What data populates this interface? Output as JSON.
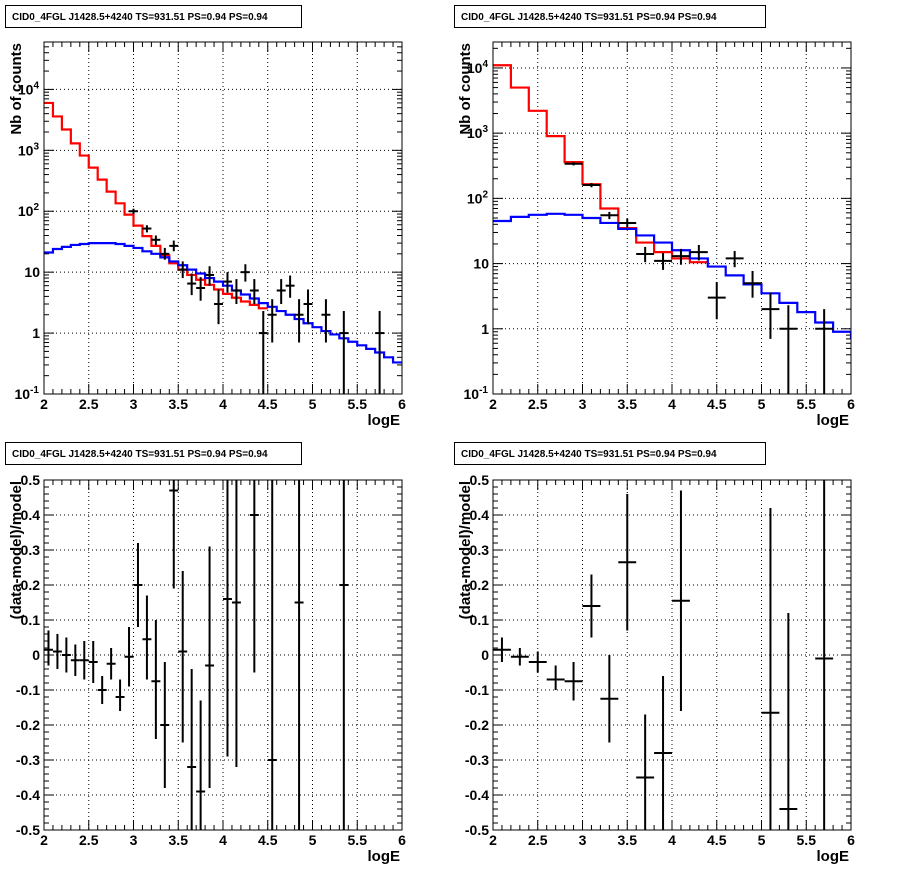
{
  "chart_data": [
    {
      "type": "step",
      "panel": "top-left",
      "title": "CID0_4FGL J1428.5+4240 TS=931.51 PS=0.94 PS=0.94",
      "xlabel": "logE",
      "ylabel": "Nb of counts",
      "xlim": [
        2,
        6
      ],
      "ylim": [
        0.1,
        60000
      ],
      "yscale": "log",
      "grid": true,
      "x_ticks": [
        "2",
        "2.5",
        "3",
        "3.5",
        "4",
        "4.5",
        "5",
        "5.5",
        "6"
      ],
      "y_ticks": [
        "10^-1",
        "1",
        "10",
        "10^2",
        "10^3",
        "10^4"
      ],
      "bin_edges": [
        2.0,
        2.1,
        2.2,
        2.3,
        2.4,
        2.5,
        2.6,
        2.7,
        2.8,
        2.9,
        3.0,
        3.1,
        3.2,
        3.3,
        3.4,
        3.5,
        3.6,
        3.7,
        3.8,
        3.9,
        4.0,
        4.1,
        4.2,
        4.3,
        4.4,
        4.5,
        4.6,
        4.7,
        4.8,
        4.9,
        5.0,
        5.1,
        5.2,
        5.3,
        5.4,
        5.5,
        5.6,
        5.7,
        5.8,
        5.9,
        6.0
      ],
      "series": [
        {
          "color": "#ff0000",
          "style": "step",
          "values": [
            6000,
            3600,
            2200,
            1300,
            820,
            520,
            330,
            210,
            135,
            88,
            58,
            39,
            27,
            19,
            14,
            11,
            9,
            7.5,
            6.2,
            5.2,
            4.4,
            3.8,
            3.3,
            2.9,
            2.55
          ]
        },
        {
          "color": "#0000ff",
          "style": "step",
          "values": [
            21,
            24,
            26,
            28,
            29,
            30,
            30,
            30,
            29,
            27,
            25,
            22,
            20,
            17.5,
            15,
            13,
            11,
            9.5,
            8,
            7,
            6,
            5,
            4.3,
            3.7,
            3.1,
            2.7,
            2.3,
            2,
            1.7,
            1.45,
            1.25,
            1.08,
            0.95,
            0.82,
            0.72,
            0.63,
            0.55,
            0.48,
            0.4,
            0.33
          ]
        },
        {
          "color": "#000000",
          "style": "errorbar",
          "points": [
            {
              "x": 3.0,
              "y": 100,
              "ylo": 90,
              "yhi": 110
            },
            {
              "x": 3.15,
              "y": 52,
              "ylo": 45,
              "yhi": 59
            },
            {
              "x": 3.25,
              "y": 34,
              "ylo": 28,
              "yhi": 40
            },
            {
              "x": 3.35,
              "y": 20,
              "ylo": 16,
              "yhi": 25
            },
            {
              "x": 3.45,
              "y": 27,
              "ylo": 22,
              "yhi": 33
            },
            {
              "x": 3.55,
              "y": 11,
              "ylo": 8,
              "yhi": 15
            },
            {
              "x": 3.65,
              "y": 6.5,
              "ylo": 4.2,
              "yhi": 9.5
            },
            {
              "x": 3.75,
              "y": 5.5,
              "ylo": 3.4,
              "yhi": 8.3
            },
            {
              "x": 3.85,
              "y": 9,
              "ylo": 6,
              "yhi": 12.5
            },
            {
              "x": 3.95,
              "y": 3,
              "ylo": 1.4,
              "yhi": 5.2
            },
            {
              "x": 4.05,
              "y": 7,
              "ylo": 4.6,
              "yhi": 10
            },
            {
              "x": 4.15,
              "y": 5,
              "ylo": 3,
              "yhi": 7.7
            },
            {
              "x": 4.25,
              "y": 10,
              "ylo": 7,
              "yhi": 13.5
            },
            {
              "x": 4.35,
              "y": 5,
              "ylo": 3,
              "yhi": 7.7
            },
            {
              "x": 4.45,
              "y": 1,
              "ylo": 0.1,
              "yhi": 2.3
            },
            {
              "x": 4.55,
              "y": 2,
              "ylo": 0.7,
              "yhi": 3.6
            },
            {
              "x": 4.65,
              "y": 5,
              "ylo": 3,
              "yhi": 7.7
            },
            {
              "x": 4.75,
              "y": 6,
              "ylo": 3.8,
              "yhi": 8.8
            },
            {
              "x": 4.85,
              "y": 2,
              "ylo": 0.7,
              "yhi": 3.6
            },
            {
              "x": 4.95,
              "y": 3,
              "ylo": 1.4,
              "yhi": 5.2
            },
            {
              "x": 5.15,
              "y": 2,
              "ylo": 0.7,
              "yhi": 3.6
            },
            {
              "x": 5.35,
              "y": 1,
              "ylo": 0.1,
              "yhi": 2.3
            },
            {
              "x": 5.75,
              "y": 1,
              "ylo": 0.1,
              "yhi": 2.3
            }
          ]
        }
      ]
    },
    {
      "type": "step",
      "panel": "top-right",
      "title": "CID0_4FGL J1428.5+4240 TS=931.51 PS=0.94 PS=0.94",
      "xlabel": "logE",
      "ylabel": "Nb of counts",
      "xlim": [
        2,
        6
      ],
      "ylim": [
        0.1,
        25000
      ],
      "yscale": "log",
      "grid": true,
      "x_ticks": [
        "2",
        "2.5",
        "3",
        "3.5",
        "4",
        "4.5",
        "5",
        "5.5",
        "6"
      ],
      "y_ticks": [
        "10^-1",
        "1",
        "10",
        "10^2",
        "10^3",
        "10^4"
      ],
      "bin_edges": [
        2.0,
        2.2,
        2.4,
        2.6,
        2.8,
        3.0,
        3.2,
        3.4,
        3.6,
        3.8,
        4.0,
        4.2,
        4.4,
        4.6,
        4.8,
        5.0,
        5.2,
        5.4,
        5.6,
        5.8,
        6.0
      ],
      "series": [
        {
          "color": "#ff0000",
          "style": "step",
          "values": [
            11000,
            5000,
            2200,
            900,
            360,
            165,
            70,
            35,
            21,
            15,
            12,
            10.5
          ]
        },
        {
          "color": "#0000ff",
          "style": "step",
          "values": [
            45,
            52,
            56,
            58,
            56,
            50,
            42,
            34,
            27,
            21,
            16,
            12,
            9,
            6.6,
            4.8,
            3.5,
            2.5,
            1.8,
            1.25,
            0.9,
            0.7
          ]
        },
        {
          "color": "#000000",
          "style": "errorbar",
          "points": [
            {
              "x": 2.9,
              "y": 340,
              "ylo": 320,
              "yhi": 360
            },
            {
              "x": 3.1,
              "y": 160,
              "ylo": 148,
              "yhi": 172
            },
            {
              "x": 3.3,
              "y": 55,
              "ylo": 48,
              "yhi": 62
            },
            {
              "x": 3.5,
              "y": 42,
              "ylo": 36,
              "yhi": 49
            },
            {
              "x": 3.7,
              "y": 14,
              "ylo": 10.5,
              "yhi": 18
            },
            {
              "x": 3.9,
              "y": 11,
              "ylo": 8,
              "yhi": 14.5
            },
            {
              "x": 4.1,
              "y": 13,
              "ylo": 9.6,
              "yhi": 16.8
            },
            {
              "x": 4.3,
              "y": 15,
              "ylo": 11.2,
              "yhi": 19.3
            },
            {
              "x": 4.5,
              "y": 3,
              "ylo": 1.4,
              "yhi": 5.2
            },
            {
              "x": 4.7,
              "y": 12,
              "ylo": 8.8,
              "yhi": 15.6
            },
            {
              "x": 4.9,
              "y": 5,
              "ylo": 3,
              "yhi": 7.7
            },
            {
              "x": 5.1,
              "y": 2,
              "ylo": 0.7,
              "yhi": 3.6
            },
            {
              "x": 5.3,
              "y": 1,
              "ylo": 0.1,
              "yhi": 2.3
            },
            {
              "x": 5.7,
              "y": 1,
              "ylo": 0.1,
              "yhi": 2.0
            }
          ]
        }
      ]
    },
    {
      "type": "scatter",
      "panel": "bottom-left",
      "title": "CID0_4FGL J1428.5+4240 TS=931.51 PS=0.94 PS=0.94",
      "xlabel": "logE",
      "ylabel": "(data-model)/model",
      "xlim": [
        2,
        6
      ],
      "ylim": [
        -0.5,
        0.5
      ],
      "yscale": "linear",
      "grid": true,
      "x_ticks": [
        "2",
        "2.5",
        "3",
        "3.5",
        "4",
        "4.5",
        "5",
        "5.5",
        "6"
      ],
      "y_ticks": [
        "-0.5",
        "-0.4",
        "-0.3",
        "-0.2",
        "-0.1",
        "0",
        "0.1",
        "0.2",
        "0.3",
        "0.4",
        "0.5"
      ],
      "series": [
        {
          "color": "#000000",
          "style": "errorbar",
          "xerr": 0.05,
          "points": [
            {
              "x": 2.05,
              "y": 0.015,
              "ylo": -0.03,
              "yhi": 0.07
            },
            {
              "x": 2.15,
              "y": 0.01,
              "ylo": -0.04,
              "yhi": 0.06
            },
            {
              "x": 2.25,
              "y": 0.0,
              "ylo": -0.05,
              "yhi": 0.05
            },
            {
              "x": 2.35,
              "y": -0.015,
              "ylo": -0.06,
              "yhi": 0.03
            },
            {
              "x": 2.45,
              "y": -0.015,
              "ylo": -0.07,
              "yhi": 0.04
            },
            {
              "x": 2.55,
              "y": -0.02,
              "ylo": -0.08,
              "yhi": 0.04
            },
            {
              "x": 2.65,
              "y": -0.1,
              "ylo": -0.14,
              "yhi": -0.06
            },
            {
              "x": 2.75,
              "y": -0.025,
              "ylo": -0.07,
              "yhi": 0.02
            },
            {
              "x": 2.85,
              "y": -0.12,
              "ylo": -0.16,
              "yhi": -0.07
            },
            {
              "x": 2.95,
              "y": -0.005,
              "ylo": -0.09,
              "yhi": 0.08
            },
            {
              "x": 3.05,
              "y": 0.2,
              "ylo": 0.08,
              "yhi": 0.32
            },
            {
              "x": 3.15,
              "y": 0.045,
              "ylo": -0.07,
              "yhi": 0.17
            },
            {
              "x": 3.25,
              "y": -0.075,
              "ylo": -0.24,
              "yhi": 0.1
            },
            {
              "x": 3.35,
              "y": -0.2,
              "ylo": -0.38,
              "yhi": -0.02
            },
            {
              "x": 3.45,
              "y": 0.47,
              "ylo": 0.19,
              "yhi": 0.5
            },
            {
              "x": 3.55,
              "y": 0.01,
              "ylo": -0.25,
              "yhi": 0.24
            },
            {
              "x": 3.65,
              "y": -0.32,
              "ylo": -0.5,
              "yhi": -0.04
            },
            {
              "x": 3.75,
              "y": -0.39,
              "ylo": -0.5,
              "yhi": -0.13
            },
            {
              "x": 3.85,
              "y": -0.03,
              "ylo": -0.38,
              "yhi": 0.31
            },
            {
              "x": 4.05,
              "y": 0.16,
              "ylo": -0.29,
              "yhi": 0.5
            },
            {
              "x": 4.15,
              "y": 0.15,
              "ylo": -0.32,
              "yhi": 0.5
            },
            {
              "x": 4.35,
              "y": 0.4,
              "ylo": -0.05,
              "yhi": 0.5
            },
            {
              "x": 4.55,
              "y": -0.3,
              "ylo": -0.5,
              "yhi": 0.5
            },
            {
              "x": 4.85,
              "y": 0.15,
              "ylo": -0.5,
              "yhi": 0.5
            },
            {
              "x": 5.35,
              "y": 0.2,
              "ylo": -0.5,
              "yhi": 0.5
            }
          ]
        }
      ]
    },
    {
      "type": "scatter",
      "panel": "bottom-right",
      "title": "CID0_4FGL J1428.5+4240 TS=931.51 PS=0.94 PS=0.94",
      "xlabel": "logE",
      "ylabel": "(data-model)/model",
      "xlim": [
        2,
        6
      ],
      "ylim": [
        -0.5,
        0.5
      ],
      "yscale": "linear",
      "grid": true,
      "x_ticks": [
        "2",
        "2.5",
        "3",
        "3.5",
        "4",
        "4.5",
        "5",
        "5.5",
        "6"
      ],
      "y_ticks": [
        "-0.5",
        "-0.4",
        "-0.3",
        "-0.2",
        "-0.1",
        "0",
        "0.1",
        "0.2",
        "0.3",
        "0.4",
        "0.5"
      ],
      "series": [
        {
          "color": "#000000",
          "style": "errorbar",
          "xerr": 0.1,
          "points": [
            {
              "x": 2.1,
              "y": 0.015,
              "ylo": -0.02,
              "yhi": 0.05
            },
            {
              "x": 2.3,
              "y": -0.005,
              "ylo": -0.03,
              "yhi": 0.02
            },
            {
              "x": 2.5,
              "y": -0.02,
              "ylo": -0.05,
              "yhi": 0.01
            },
            {
              "x": 2.7,
              "y": -0.07,
              "ylo": -0.1,
              "yhi": -0.03
            },
            {
              "x": 2.9,
              "y": -0.075,
              "ylo": -0.13,
              "yhi": -0.02
            },
            {
              "x": 3.1,
              "y": 0.14,
              "ylo": 0.05,
              "yhi": 0.23
            },
            {
              "x": 3.3,
              "y": -0.125,
              "ylo": -0.25,
              "yhi": 0.0
            },
            {
              "x": 3.5,
              "y": 0.265,
              "ylo": 0.07,
              "yhi": 0.46
            },
            {
              "x": 3.7,
              "y": -0.35,
              "ylo": -0.5,
              "yhi": -0.17
            },
            {
              "x": 3.9,
              "y": -0.28,
              "ylo": -0.5,
              "yhi": -0.06
            },
            {
              "x": 4.1,
              "y": 0.155,
              "ylo": -0.16,
              "yhi": 0.47
            },
            {
              "x": 5.1,
              "y": -0.165,
              "ylo": -0.5,
              "yhi": 0.42
            },
            {
              "x": 5.3,
              "y": -0.44,
              "ylo": -0.5,
              "yhi": 0.12
            },
            {
              "x": 5.7,
              "y": -0.01,
              "ylo": -0.5,
              "yhi": 0.5
            }
          ]
        }
      ]
    }
  ]
}
